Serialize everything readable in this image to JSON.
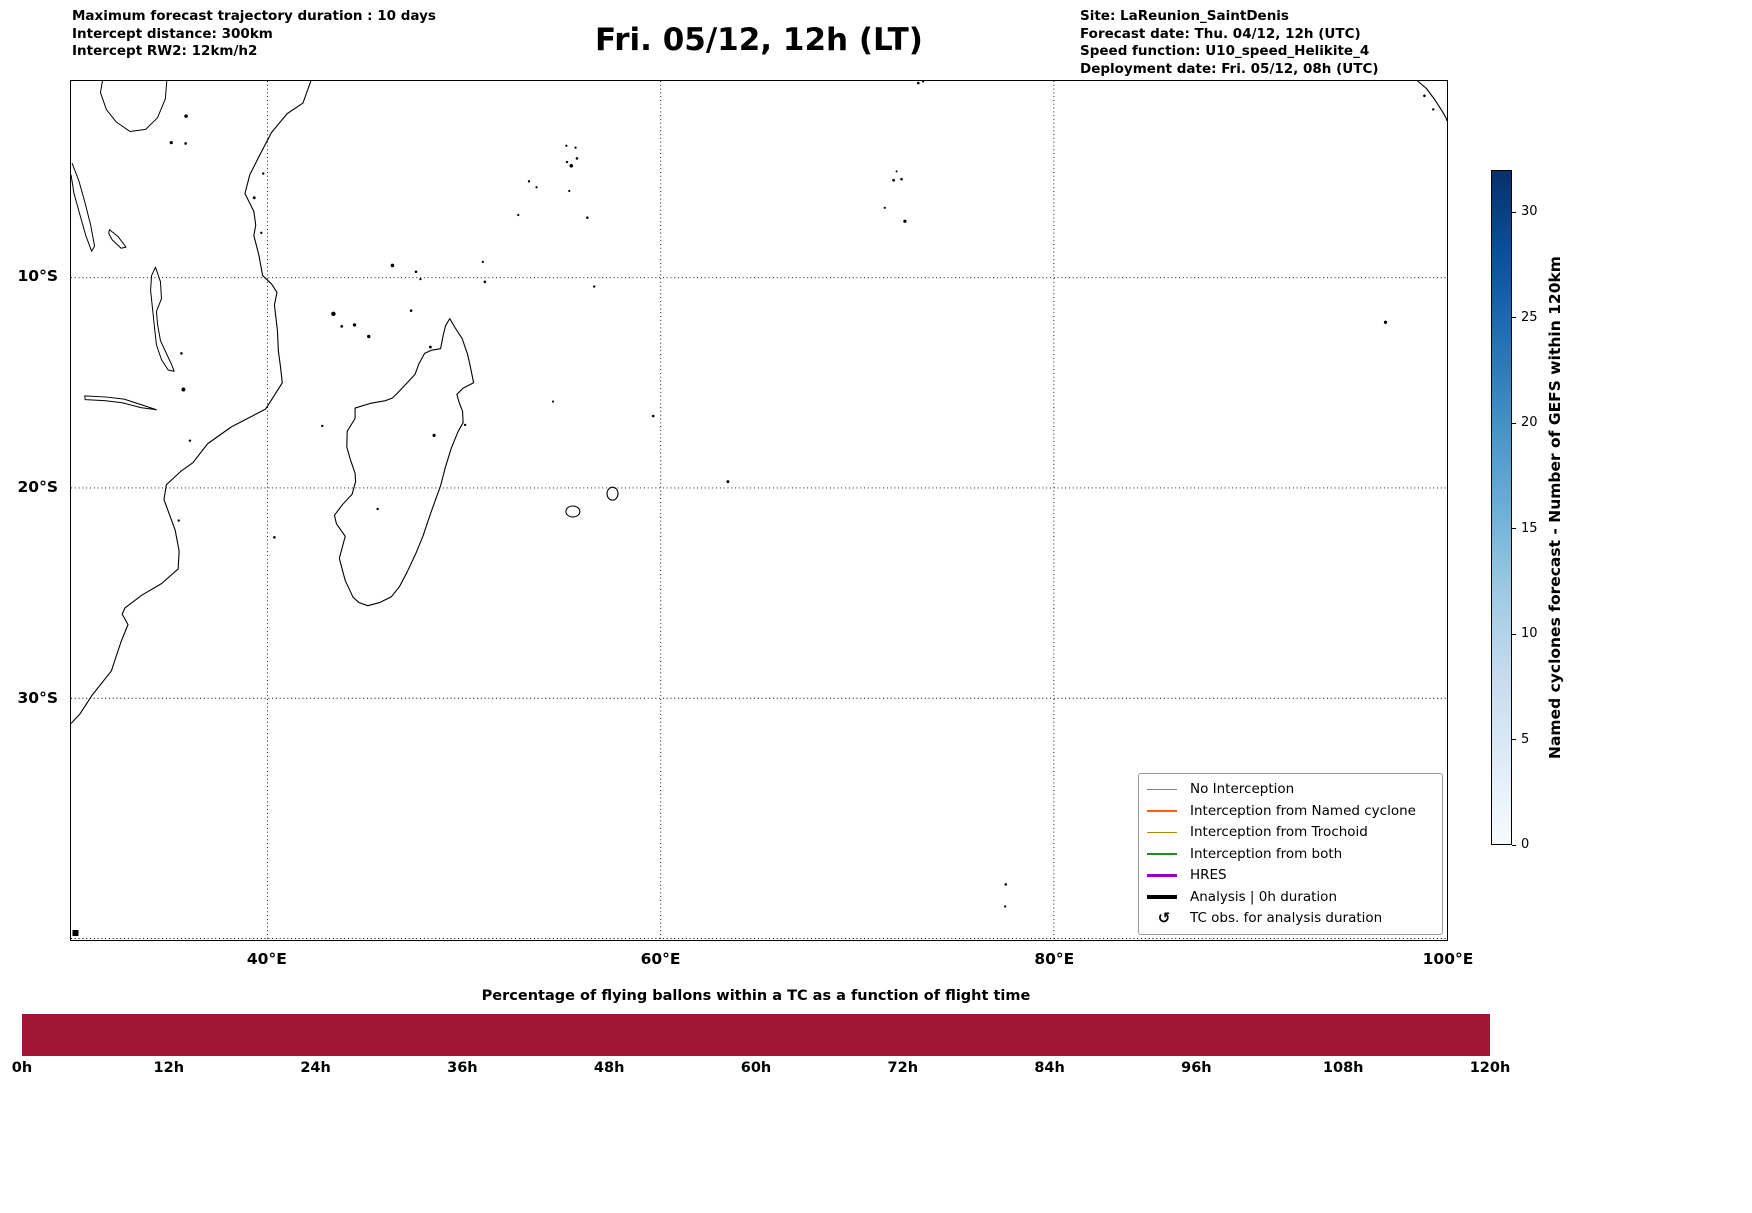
{
  "header": {
    "left_lines": [
      "Maximum forecast trajectory duration : 10 days",
      "Intercept distance: 300km",
      "Intercept RW2: 12km/h2"
    ],
    "title": "Fri. 05/12, 12h (LT)",
    "right_lines": [
      "Site: LaReunion_SaintDenis",
      "Forecast date: Thu. 04/12, 12h (UTC)",
      "Speed function: U10_speed_Helikite_4",
      "Deployment date: Fri. 05/12, 08h (UTC)"
    ]
  },
  "map": {
    "lon_range_deg_east": [
      30,
      100
    ],
    "lat_range_deg_south": [
      0.65,
      41.5
    ],
    "lon_ticks": [
      {
        "value": 40,
        "label": "40°E"
      },
      {
        "value": 60,
        "label": "60°E"
      },
      {
        "value": 80,
        "label": "80°E"
      },
      {
        "value": 100,
        "label": "100°E"
      }
    ],
    "lat_ticks": [
      {
        "value": 10,
        "label": "10°S"
      },
      {
        "value": 20,
        "label": "20°S"
      },
      {
        "value": 30,
        "label": "30°S"
      }
    ],
    "legend": [
      {
        "label": "No Interception",
        "color": "#808080",
        "style": "thin-line"
      },
      {
        "label": "Interception from Named cyclone",
        "color": "#ff5f15",
        "style": "thin-line"
      },
      {
        "label": "Interception from Trochoid",
        "color": "#b8860b",
        "style": "thin-line"
      },
      {
        "label": "Interception from both",
        "color": "#228b22",
        "style": "thin-line"
      },
      {
        "label": "HRES",
        "color": "#9400d3",
        "style": "thick-line"
      },
      {
        "label": "Analysis | 0h duration",
        "color": "#000000",
        "style": "thick-line"
      },
      {
        "label": "TC obs. for analysis duration",
        "symbol": "↺",
        "style": "symbol"
      }
    ]
  },
  "colorbar": {
    "label": "Named cyclones forecast - Number of GEFS within 120km",
    "ticks": [
      0,
      5,
      10,
      15,
      20,
      25,
      30
    ],
    "range": [
      0,
      32
    ],
    "colormap": "Blues"
  },
  "bottom_chart": {
    "title": "Percentage of flying ballons within a TC as a function of flight time",
    "x_ticks": [
      "0h",
      "12h",
      "24h",
      "36h",
      "48h",
      "60h",
      "72h",
      "84h",
      "96h",
      "108h",
      "120h"
    ],
    "bar_color": "#a11634"
  },
  "chart_data": {
    "type": "bar",
    "title": "Percentage of flying ballons within a TC as a function of flight time",
    "x_hours": [
      0,
      12,
      24,
      36,
      48,
      60,
      72,
      84,
      96,
      108,
      120
    ],
    "x_tick_labels": [
      "0h",
      "12h",
      "24h",
      "36h",
      "48h",
      "60h",
      "72h",
      "84h",
      "96h",
      "108h",
      "120h"
    ],
    "values_percent": [
      100,
      100,
      100,
      100,
      100,
      100,
      100,
      100,
      100,
      100,
      100
    ],
    "bar_color": "#a11634",
    "x_range_hours": [
      0,
      120
    ],
    "grid": false,
    "note": "single continuous full-height crimson bar spanning 0h to 120h"
  }
}
